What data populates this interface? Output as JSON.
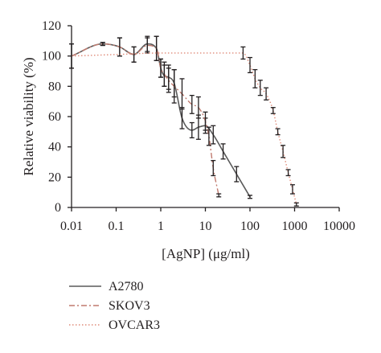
{
  "chart_data": {
    "type": "line",
    "xlabel": "[AgNP] (μg/ml)",
    "ylabel": "Relative viability (%)",
    "xscale": "log",
    "xlim": [
      0.01,
      10000
    ],
    "ylim": [
      0,
      120
    ],
    "xticks": [
      "0.01",
      "0.1",
      "1",
      "10",
      "100",
      "1000",
      "10000"
    ],
    "yticks": [
      "0",
      "20",
      "40",
      "60",
      "80",
      "100",
      "120"
    ],
    "grid": false,
    "legend_position": "bottom-left",
    "series": [
      {
        "name": "A2780",
        "color": "#5a5a5a",
        "style": "solid",
        "x": [
          0.01,
          0.05,
          0.12,
          0.25,
          0.5,
          0.8,
          1.0,
          1.2,
          1.5,
          2.0,
          3.0,
          5.0,
          7.0,
          10,
          15,
          25,
          50,
          100
        ],
        "y": [
          100,
          108,
          106,
          101,
          108,
          105,
          92,
          87,
          86,
          82,
          59,
          51,
          53,
          54,
          48,
          37,
          22,
          7
        ],
        "err": [
          8,
          1,
          6,
          5,
          5,
          8,
          6,
          7,
          8,
          9,
          7,
          5,
          8,
          5,
          6,
          5,
          5,
          1
        ]
      },
      {
        "name": "SKOV3",
        "color": "#c07a6e",
        "style": "dashdot",
        "x": [
          0.01,
          0.05,
          0.12,
          0.25,
          0.5,
          0.8,
          1.0,
          1.2,
          1.5,
          2.0,
          3.0,
          5.0,
          7.0,
          10,
          12,
          15,
          20
        ],
        "y": [
          100,
          108,
          106,
          101,
          107,
          105,
          92,
          88,
          84,
          80,
          75,
          68,
          66,
          57,
          47,
          26,
          8
        ],
        "err": [
          8,
          1,
          6,
          5,
          5,
          8,
          6,
          8,
          8,
          11,
          10,
          6,
          7,
          6,
          6,
          5,
          1
        ]
      },
      {
        "name": "OVCAR3",
        "color": "#e08c7a",
        "style": "dotted",
        "x": [
          0.01,
          0.1,
          1.0,
          10,
          70,
          100,
          130,
          170,
          230,
          330,
          420,
          550,
          720,
          900,
          1100
        ],
        "y": [
          100,
          101,
          102,
          102,
          102,
          94,
          85,
          79,
          75,
          64,
          50,
          37,
          23,
          12,
          2
        ],
        "err": [
          0,
          0,
          0,
          0,
          4,
          5,
          6,
          5,
          4,
          2,
          2,
          4,
          2,
          3,
          1
        ]
      }
    ]
  }
}
